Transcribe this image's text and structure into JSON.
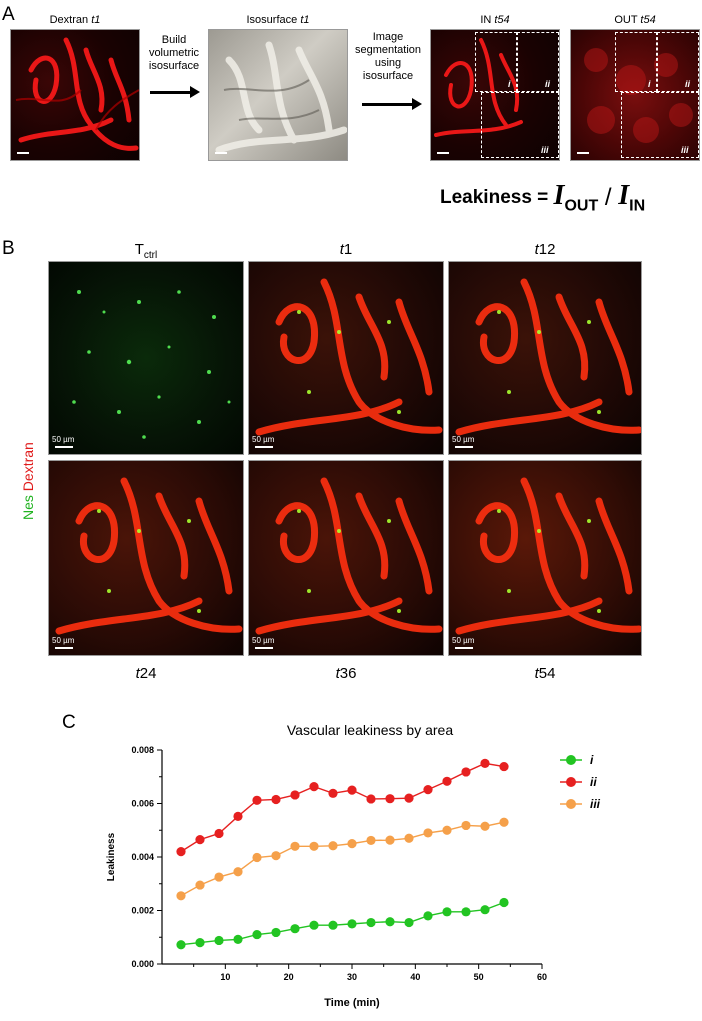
{
  "panel_a": {
    "letter": "A",
    "images": [
      {
        "label": "Dextran t1",
        "label_main": "Dextran ",
        "label_em": "t1"
      },
      {
        "label": "Isosurface t1",
        "label_main": "Isosurface ",
        "label_em": "t1"
      },
      {
        "label": "IN t54",
        "label_main": "IN ",
        "label_em": "t54"
      },
      {
        "label": "OUT t54",
        "label_main": "OUT ",
        "label_em": "t54"
      }
    ],
    "arrow1_text": [
      "Build",
      "volumetric",
      "isosurface"
    ],
    "arrow2_text": [
      "Image",
      "segmentation",
      "using",
      "isosurface"
    ],
    "roi_labels": [
      "i",
      "ii",
      "iii"
    ],
    "formula": {
      "prefix": "Leakiness = ",
      "num": "I",
      "num_sub": "OUT",
      "slash": " / ",
      "den": "I",
      "den_sub": "IN"
    }
  },
  "panel_b": {
    "letter": "B",
    "side_label_green": "Nes",
    "side_label_red": "Dextran",
    "scale_text": "50 µm",
    "top_labels": [
      {
        "main": "T",
        "sub": "ctrl"
      },
      {
        "em": "t",
        "main": "1"
      },
      {
        "em": "t",
        "main": "12"
      }
    ],
    "bottom_labels": [
      {
        "em": "t",
        "main": "24"
      },
      {
        "em": "t",
        "main": "36"
      },
      {
        "em": "t",
        "main": "54"
      }
    ]
  },
  "panel_c": {
    "letter": "C"
  },
  "chart_data": {
    "type": "line",
    "title": "Vascular leakiness by area",
    "xlabel": "Time (min)",
    "ylabel": "Leakiness",
    "xlim": [
      0,
      60
    ],
    "ylim": [
      0,
      0.008
    ],
    "xticks": [
      10,
      20,
      30,
      40,
      50,
      60
    ],
    "yticks": [
      "0.000",
      "0.002",
      "0.004",
      "0.006",
      "0.008"
    ],
    "legend_position": "top-right",
    "x": [
      3,
      6,
      9,
      12,
      15,
      18,
      21,
      24,
      27,
      30,
      33,
      36,
      39,
      42,
      45,
      48,
      51,
      54
    ],
    "series": [
      {
        "name": "i",
        "color": "#22c422",
        "values": [
          0.00072,
          0.0008,
          0.00088,
          0.00092,
          0.0011,
          0.00118,
          0.00132,
          0.00145,
          0.00145,
          0.0015,
          0.00155,
          0.00158,
          0.00155,
          0.0018,
          0.00195,
          0.00195,
          0.00203,
          0.0023
        ]
      },
      {
        "name": "ii",
        "color": "#e62020",
        "values": [
          0.0042,
          0.00465,
          0.00488,
          0.00552,
          0.00612,
          0.00615,
          0.00632,
          0.00663,
          0.00638,
          0.0065,
          0.00617,
          0.00618,
          0.0062,
          0.00652,
          0.00683,
          0.00718,
          0.0075,
          0.00738
        ]
      },
      {
        "name": "iii",
        "color": "#f5a04a",
        "values": [
          0.00255,
          0.00295,
          0.00325,
          0.00345,
          0.00398,
          0.00405,
          0.0044,
          0.0044,
          0.00442,
          0.0045,
          0.00462,
          0.00463,
          0.0047,
          0.0049,
          0.005,
          0.00518,
          0.00515,
          0.0053
        ]
      }
    ]
  }
}
